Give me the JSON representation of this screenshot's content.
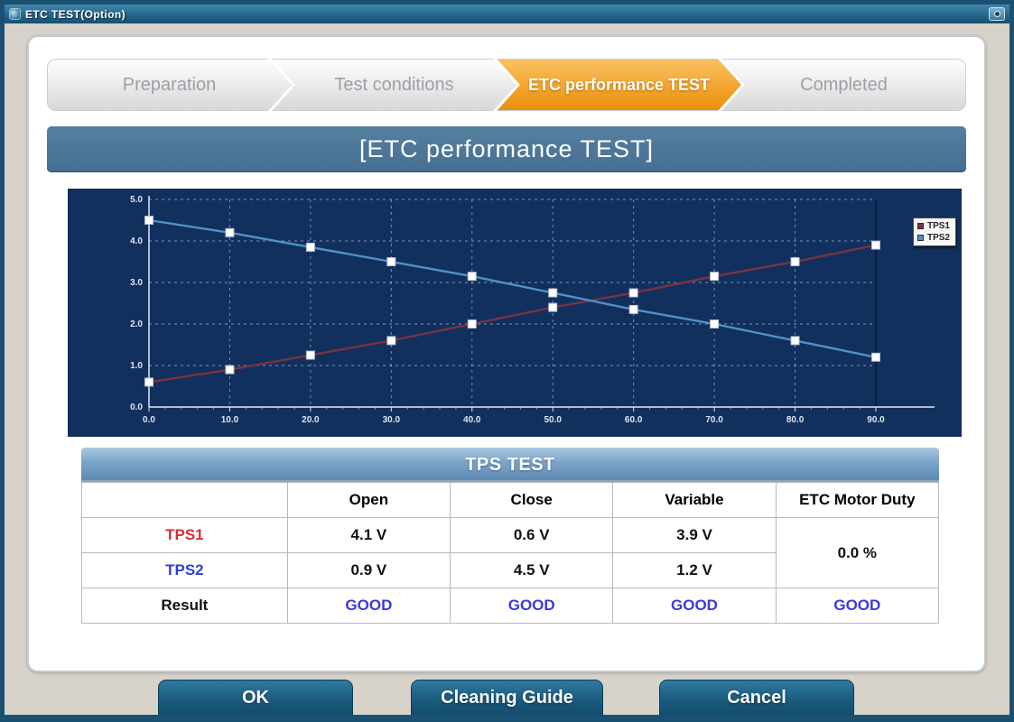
{
  "window": {
    "title": "ETC TEST(Option)"
  },
  "stepper": {
    "steps": [
      {
        "label": "Preparation",
        "active": false
      },
      {
        "label": "Test conditions",
        "active": false
      },
      {
        "label": "ETC performance TEST",
        "active": true
      },
      {
        "label": "Completed",
        "active": false
      }
    ]
  },
  "header": {
    "title": "[ETC performance TEST]"
  },
  "chart_data": {
    "type": "line",
    "x": [
      0,
      10,
      20,
      30,
      40,
      50,
      60,
      70,
      80,
      90
    ],
    "series": [
      {
        "name": "TPS1",
        "color": "#7a3340",
        "values": [
          0.6,
          0.9,
          1.25,
          1.6,
          2.0,
          2.4,
          2.75,
          3.15,
          3.5,
          3.9
        ]
      },
      {
        "name": "TPS2",
        "color": "#4e93c8",
        "values": [
          4.5,
          4.2,
          3.85,
          3.5,
          3.15,
          2.75,
          2.35,
          2.0,
          1.6,
          1.2
        ]
      }
    ],
    "x_ticks": [
      "0.0",
      "10.0",
      "20.0",
      "30.0",
      "40.0",
      "50.0",
      "60.0",
      "70.0",
      "80.0",
      "90.0"
    ],
    "y_ticks": [
      "0.0",
      "1.0",
      "2.0",
      "3.0",
      "4.0",
      "5.0"
    ],
    "xlim": [
      0,
      90
    ],
    "ylim": [
      0,
      5
    ],
    "grid": true,
    "legend_position": "top-right",
    "marker": "square",
    "background": "#12305e",
    "title": "",
    "xlabel": "",
    "ylabel": ""
  },
  "tps_table": {
    "title": "TPS TEST",
    "columns": [
      "",
      "Open",
      "Close",
      "Variable",
      "ETC Motor Duty"
    ],
    "rows": [
      {
        "label": "TPS1",
        "values": [
          "4.1 V",
          "0.6 V",
          "3.9 V"
        ]
      },
      {
        "label": "TPS2",
        "values": [
          "0.9 V",
          "4.5 V",
          "1.2 V"
        ]
      }
    ],
    "motor_duty": "0.0 %",
    "result": {
      "label": "Result",
      "values": [
        "GOOD",
        "GOOD",
        "GOOD",
        "GOOD"
      ]
    }
  },
  "footer": {
    "buttons": [
      "OK",
      "Cleaning Guide",
      "Cancel"
    ]
  },
  "colors": {
    "accent_orange": "#f2a42e",
    "header_blue": "#4a7397",
    "chart_background": "#12305e",
    "tps1_red": "#d42f2f",
    "tps2_blue": "#2f3fd4",
    "good_blue": "#3a3ae0",
    "button_teal": "#1b5b7e"
  }
}
